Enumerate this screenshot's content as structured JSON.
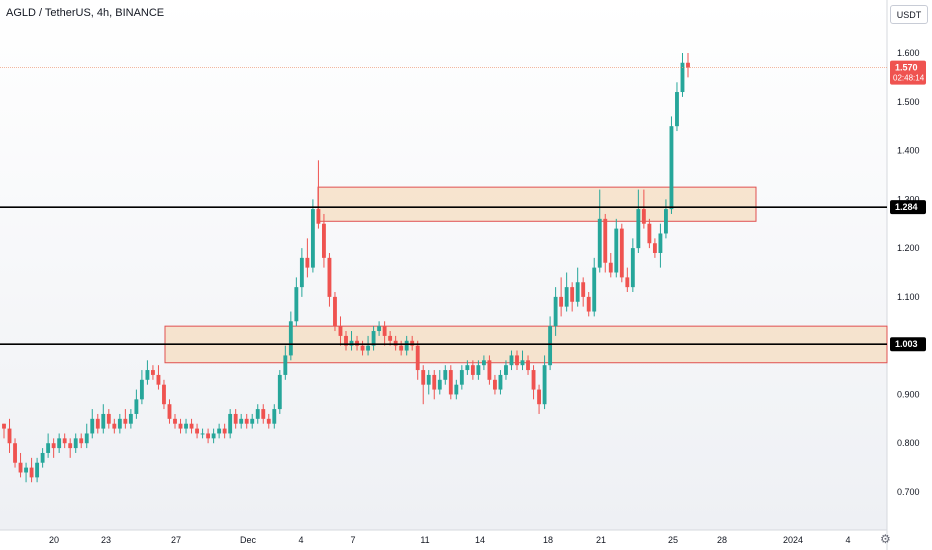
{
  "header": {
    "title": "AGLD / TetherUS, 4h, BINANCE",
    "unit_label": "USDT",
    "settings_icon": "gear-icon"
  },
  "colors": {
    "up": "#26a69a",
    "down": "#ef5350",
    "zone_fill": "#f5dcc0",
    "zone_border": "#e05050",
    "line": "#000000",
    "last_price_line": "#f0a080"
  },
  "chart_data": {
    "type": "candlestick",
    "title": "AGLD / TetherUS, 4h, BINANCE",
    "ylabel": "USDT",
    "ylim": [
      0.62,
      1.7
    ],
    "y_ticks": [
      "1.600",
      "1.500",
      "1.400",
      "1.300",
      "1.200",
      "1.100",
      "0.900",
      "0.800",
      "0.700"
    ],
    "x_ticks": [
      "20",
      "23",
      "27",
      "Dec",
      "4",
      "7",
      "11",
      "14",
      "18",
      "21",
      "25",
      "28",
      "2024",
      "4"
    ],
    "price_labels": [
      {
        "value": 1.57,
        "text": "1.570",
        "sub": "02:48:14",
        "color": "#ef5350"
      },
      {
        "value": 1.284,
        "text": "1.284",
        "color": "#000000"
      },
      {
        "value": 1.003,
        "text": "1.003",
        "color": "#000000"
      }
    ],
    "horizontal_lines": [
      1.284,
      1.003
    ],
    "zones": [
      {
        "from_date": "Dec 5",
        "to_date": "Dec 28",
        "low": 1.255,
        "high": 1.325
      },
      {
        "from_date": "Nov 26",
        "to_date": "Jan 4",
        "low": 0.965,
        "high": 1.04
      }
    ],
    "candles": [
      [
        0.84,
        0.83,
        0.84,
        0.81
      ],
      [
        0.83,
        0.8,
        0.85,
        0.78
      ],
      [
        0.8,
        0.76,
        0.81,
        0.75
      ],
      [
        0.76,
        0.74,
        0.78,
        0.73
      ],
      [
        0.74,
        0.75,
        0.76,
        0.72
      ],
      [
        0.75,
        0.73,
        0.77,
        0.72
      ],
      [
        0.73,
        0.76,
        0.77,
        0.72
      ],
      [
        0.76,
        0.78,
        0.79,
        0.75
      ],
      [
        0.78,
        0.8,
        0.82,
        0.77
      ],
      [
        0.8,
        0.79,
        0.81,
        0.77
      ],
      [
        0.79,
        0.81,
        0.82,
        0.78
      ],
      [
        0.81,
        0.8,
        0.82,
        0.79
      ],
      [
        0.8,
        0.79,
        0.81,
        0.77
      ],
      [
        0.79,
        0.81,
        0.82,
        0.78
      ],
      [
        0.81,
        0.8,
        0.82,
        0.79
      ],
      [
        0.8,
        0.82,
        0.84,
        0.79
      ],
      [
        0.82,
        0.85,
        0.87,
        0.81
      ],
      [
        0.85,
        0.83,
        0.86,
        0.82
      ],
      [
        0.83,
        0.86,
        0.88,
        0.82
      ],
      [
        0.86,
        0.84,
        0.87,
        0.83
      ],
      [
        0.84,
        0.83,
        0.85,
        0.82
      ],
      [
        0.83,
        0.85,
        0.86,
        0.82
      ],
      [
        0.85,
        0.84,
        0.87,
        0.83
      ],
      [
        0.84,
        0.86,
        0.87,
        0.83
      ],
      [
        0.86,
        0.89,
        0.91,
        0.85
      ],
      [
        0.89,
        0.93,
        0.95,
        0.88
      ],
      [
        0.93,
        0.95,
        0.97,
        0.92
      ],
      [
        0.95,
        0.94,
        0.96,
        0.93
      ],
      [
        0.94,
        0.92,
        0.96,
        0.91
      ],
      [
        0.92,
        0.88,
        0.93,
        0.87
      ],
      [
        0.88,
        0.85,
        0.89,
        0.84
      ],
      [
        0.85,
        0.84,
        0.86,
        0.83
      ],
      [
        0.84,
        0.83,
        0.85,
        0.82
      ],
      [
        0.83,
        0.84,
        0.85,
        0.82
      ],
      [
        0.84,
        0.83,
        0.85,
        0.82
      ],
      [
        0.83,
        0.82,
        0.84,
        0.81
      ],
      [
        0.82,
        0.82,
        0.83,
        0.81
      ],
      [
        0.82,
        0.81,
        0.83,
        0.8
      ],
      [
        0.81,
        0.82,
        0.83,
        0.8
      ],
      [
        0.82,
        0.83,
        0.84,
        0.81
      ],
      [
        0.83,
        0.82,
        0.84,
        0.81
      ],
      [
        0.82,
        0.86,
        0.87,
        0.81
      ],
      [
        0.86,
        0.84,
        0.87,
        0.83
      ],
      [
        0.84,
        0.85,
        0.86,
        0.83
      ],
      [
        0.85,
        0.84,
        0.86,
        0.83
      ],
      [
        0.84,
        0.85,
        0.86,
        0.83
      ],
      [
        0.85,
        0.87,
        0.88,
        0.84
      ],
      [
        0.87,
        0.85,
        0.88,
        0.84
      ],
      [
        0.85,
        0.84,
        0.86,
        0.83
      ],
      [
        0.84,
        0.87,
        0.88,
        0.83
      ],
      [
        0.87,
        0.94,
        0.95,
        0.86
      ],
      [
        0.94,
        0.98,
        1.0,
        0.93
      ],
      [
        0.98,
        1.05,
        1.07,
        0.97
      ],
      [
        1.05,
        1.12,
        1.14,
        1.04
      ],
      [
        1.12,
        1.18,
        1.2,
        1.1
      ],
      [
        1.18,
        1.16,
        1.22,
        1.14
      ],
      [
        1.16,
        1.28,
        1.3,
        1.15
      ],
      [
        1.28,
        1.25,
        1.38,
        1.24
      ],
      [
        1.25,
        1.18,
        1.27,
        1.16
      ],
      [
        1.18,
        1.1,
        1.19,
        1.08
      ],
      [
        1.1,
        1.04,
        1.11,
        1.03
      ],
      [
        1.04,
        1.02,
        1.06,
        1.0
      ],
      [
        1.02,
        1.0,
        1.03,
        0.99
      ],
      [
        1.0,
        1.01,
        1.03,
        0.99
      ],
      [
        1.01,
        1.0,
        1.02,
        0.99
      ],
      [
        1.0,
        0.99,
        1.01,
        0.98
      ],
      [
        0.99,
        1.0,
        1.02,
        0.98
      ],
      [
        1.0,
        1.03,
        1.04,
        0.99
      ],
      [
        1.03,
        1.04,
        1.05,
        1.02
      ],
      [
        1.04,
        1.02,
        1.05,
        1.0
      ],
      [
        1.02,
        1.01,
        1.03,
        1.0
      ],
      [
        1.01,
        1.0,
        1.02,
        0.99
      ],
      [
        1.0,
        0.99,
        1.01,
        0.98
      ],
      [
        0.99,
        1.01,
        1.02,
        0.98
      ],
      [
        1.01,
        1.0,
        1.02,
        0.99
      ],
      [
        1.0,
        0.95,
        1.01,
        0.93
      ],
      [
        0.95,
        0.92,
        0.96,
        0.88
      ],
      [
        0.92,
        0.94,
        0.95,
        0.9
      ],
      [
        0.94,
        0.91,
        0.95,
        0.89
      ],
      [
        0.91,
        0.93,
        0.95,
        0.9
      ],
      [
        0.93,
        0.95,
        0.96,
        0.92
      ],
      [
        0.95,
        0.9,
        0.96,
        0.89
      ],
      [
        0.9,
        0.92,
        0.93,
        0.89
      ],
      [
        0.92,
        0.95,
        0.96,
        0.91
      ],
      [
        0.95,
        0.96,
        0.97,
        0.94
      ],
      [
        0.96,
        0.94,
        0.97,
        0.93
      ],
      [
        0.94,
        0.96,
        0.97,
        0.93
      ],
      [
        0.96,
        0.97,
        0.98,
        0.95
      ],
      [
        0.97,
        0.93,
        0.98,
        0.92
      ],
      [
        0.93,
        0.91,
        0.94,
        0.9
      ],
      [
        0.91,
        0.94,
        0.95,
        0.9
      ],
      [
        0.94,
        0.96,
        0.97,
        0.93
      ],
      [
        0.96,
        0.98,
        0.99,
        0.95
      ],
      [
        0.98,
        0.96,
        0.99,
        0.95
      ],
      [
        0.96,
        0.97,
        0.99,
        0.95
      ],
      [
        0.97,
        0.95,
        0.98,
        0.94
      ],
      [
        0.95,
        0.91,
        0.96,
        0.89
      ],
      [
        0.91,
        0.88,
        0.92,
        0.86
      ],
      [
        0.88,
        0.96,
        0.98,
        0.87
      ],
      [
        0.96,
        1.04,
        1.06,
        0.95
      ],
      [
        1.04,
        1.1,
        1.12,
        1.02
      ],
      [
        1.1,
        1.08,
        1.14,
        1.06
      ],
      [
        1.08,
        1.12,
        1.15,
        1.07
      ],
      [
        1.12,
        1.09,
        1.13,
        1.07
      ],
      [
        1.09,
        1.13,
        1.16,
        1.08
      ],
      [
        1.13,
        1.1,
        1.14,
        1.08
      ],
      [
        1.1,
        1.07,
        1.11,
        1.06
      ],
      [
        1.07,
        1.16,
        1.18,
        1.06
      ],
      [
        1.16,
        1.26,
        1.32,
        1.15
      ],
      [
        1.26,
        1.17,
        1.27,
        1.15
      ],
      [
        1.17,
        1.15,
        1.19,
        1.14
      ],
      [
        1.15,
        1.24,
        1.26,
        1.14
      ],
      [
        1.24,
        1.14,
        1.25,
        1.13
      ],
      [
        1.14,
        1.12,
        1.16,
        1.11
      ],
      [
        1.12,
        1.2,
        1.22,
        1.11
      ],
      [
        1.2,
        1.28,
        1.32,
        1.19
      ],
      [
        1.28,
        1.25,
        1.32,
        1.24
      ],
      [
        1.25,
        1.21,
        1.26,
        1.2
      ],
      [
        1.21,
        1.19,
        1.22,
        1.18
      ],
      [
        1.19,
        1.23,
        1.25,
        1.16
      ],
      [
        1.23,
        1.28,
        1.3,
        1.22
      ],
      [
        1.28,
        1.45,
        1.47,
        1.27
      ],
      [
        1.45,
        1.52,
        1.54,
        1.44
      ],
      [
        1.52,
        1.58,
        1.6,
        1.51
      ],
      [
        1.58,
        1.57,
        1.6,
        1.55
      ]
    ]
  }
}
